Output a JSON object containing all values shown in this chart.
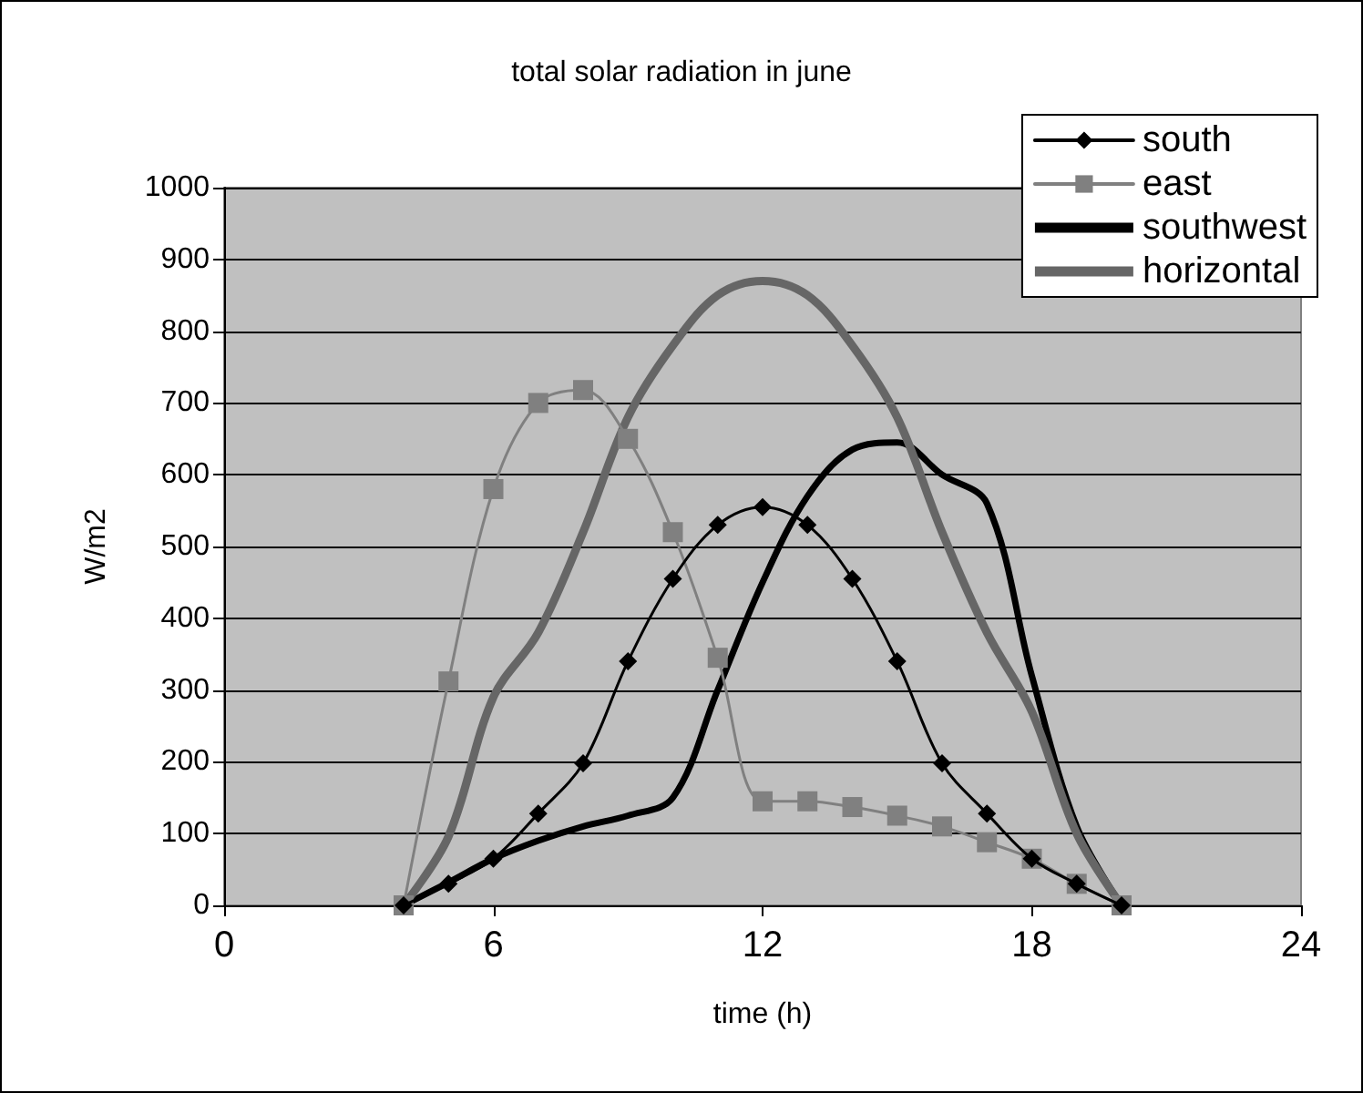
{
  "chart_data": {
    "type": "line",
    "title": "total solar radiation in june",
    "xlabel": "time (h)",
    "ylabel": "W/m2",
    "x": [
      4,
      5,
      6,
      7,
      8,
      9,
      10,
      11,
      12,
      13,
      14,
      15,
      16,
      17,
      18,
      19,
      20
    ],
    "series": [
      {
        "name": "south",
        "color": "#000000",
        "marker": "diamond",
        "values": [
          0,
          30,
          65,
          128,
          198,
          340,
          455,
          530,
          555,
          530,
          455,
          340,
          198,
          128,
          65,
          30,
          0
        ]
      },
      {
        "name": "east",
        "color": "#808080",
        "marker": "square",
        "values": [
          0,
          312,
          580,
          700,
          718,
          650,
          520,
          345,
          145,
          145,
          137,
          125,
          110,
          88,
          65,
          30,
          0
        ]
      },
      {
        "name": "southwest",
        "color": "#000000",
        "marker": "none",
        "values": [
          0,
          32,
          65,
          90,
          110,
          125,
          150,
          300,
          450,
          570,
          635,
          645,
          600,
          560,
          320,
          110,
          0
        ]
      },
      {
        "name": "horizontal",
        "color": "#666666",
        "marker": "none",
        "values": [
          0,
          96,
          290,
          380,
          520,
          680,
          780,
          850,
          870,
          850,
          780,
          680,
          520,
          380,
          270,
          100,
          0
        ]
      }
    ],
    "xlim": [
      0,
      24
    ],
    "xticks": [
      0,
      6,
      12,
      18,
      24
    ],
    "ylim": [
      0,
      1000
    ],
    "yticks": [
      0,
      100,
      200,
      300,
      400,
      500,
      600,
      700,
      800,
      900,
      1000
    ],
    "grid": "y",
    "legend": "top right"
  }
}
